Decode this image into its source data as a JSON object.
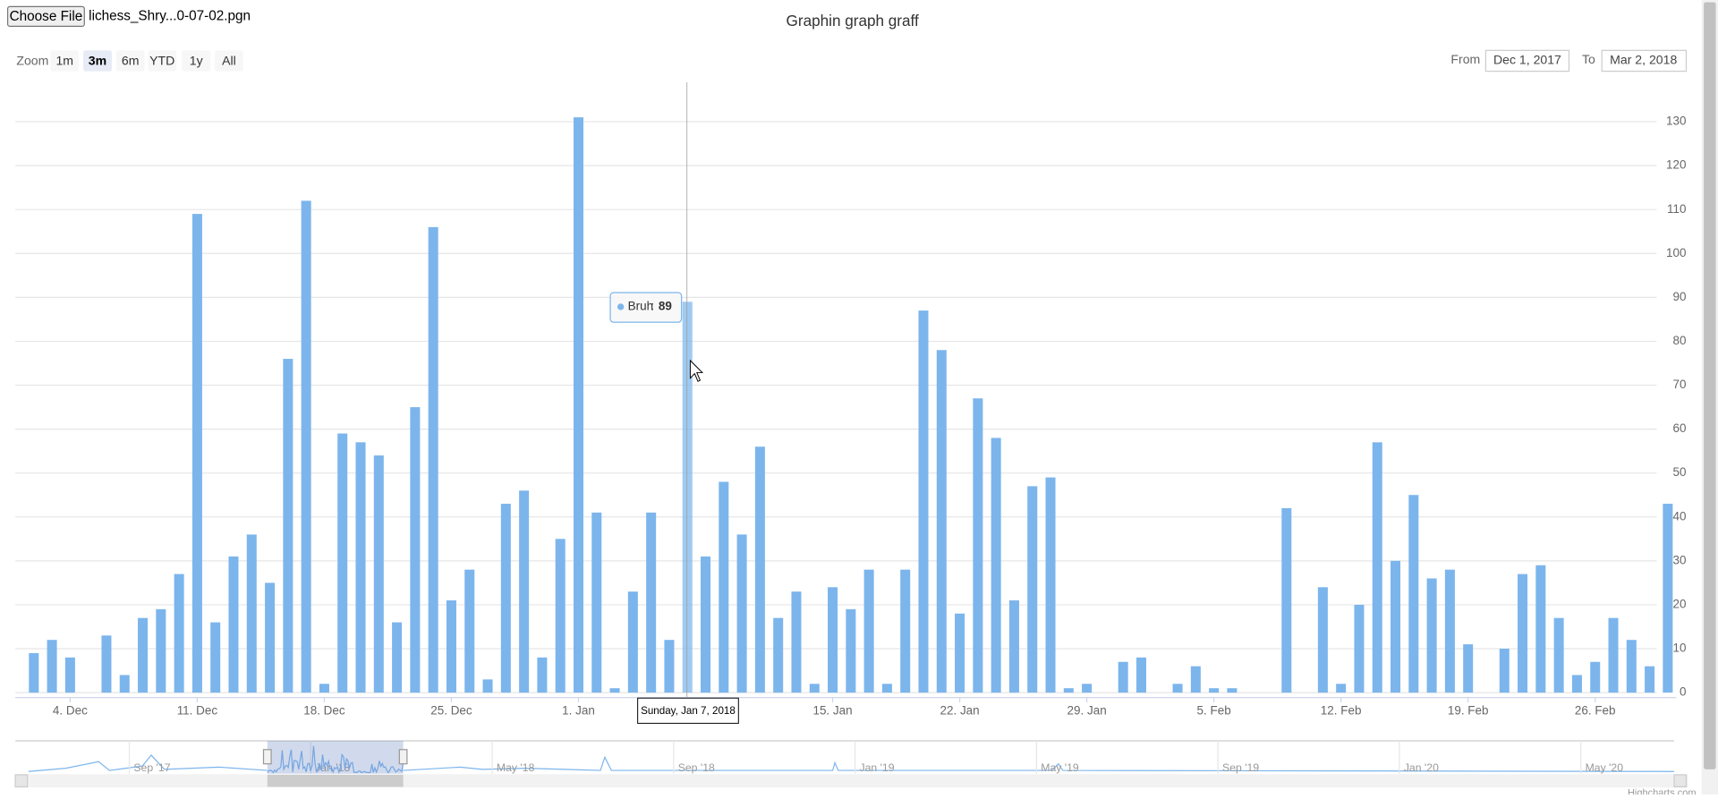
{
  "file_input": {
    "button": "Choose File",
    "file_name": "lichess_Shry...0-07-02.pgn"
  },
  "range_selector": {
    "zoom_label": "Zoom",
    "buttons": [
      "1m",
      "3m",
      "6m",
      "YTD",
      "1y",
      "All"
    ],
    "selected": "3m",
    "from_label": "From",
    "from": "Dec 1, 2017",
    "to_label": "To",
    "to": "Mar 2, 2018"
  },
  "chart_data": {
    "type": "bar",
    "title": "Graphin graph graff",
    "categories": [
      null,
      null,
      null,
      "4. Dec",
      null,
      null,
      null,
      null,
      null,
      null,
      "11. Dec",
      null,
      null,
      null,
      null,
      null,
      null,
      "18. Dec",
      null,
      null,
      null,
      null,
      null,
      null,
      "25. Dec",
      null,
      null,
      null,
      null,
      null,
      null,
      "1. Jan",
      null,
      null,
      null,
      null,
      null,
      null,
      null,
      null,
      null,
      null,
      null,
      null,
      null,
      "15. Jan",
      null,
      null,
      null,
      null,
      null,
      null,
      "22. Jan",
      null,
      null,
      null,
      null,
      null,
      null,
      "29. Jan",
      null,
      null,
      null,
      null,
      null,
      null,
      "5. Feb",
      null,
      null,
      null,
      null,
      null,
      null,
      "12. Feb",
      null,
      null,
      null,
      null,
      null,
      null,
      "19. Feb",
      null,
      null,
      null,
      null,
      null,
      null,
      "26. Feb",
      null,
      null,
      null,
      null
    ],
    "series": [
      {
        "name": "Bruh",
        "color": "#7cb5ec",
        "values": [
          0,
          9,
          12,
          8,
          0,
          13,
          4,
          17,
          19,
          27,
          109,
          16,
          31,
          36,
          25,
          76,
          112,
          2,
          59,
          57,
          54,
          16,
          65,
          106,
          21,
          28,
          3,
          43,
          46,
          8,
          35,
          131,
          41,
          1,
          23,
          41,
          12,
          89,
          31,
          48,
          36,
          56,
          17,
          23,
          2,
          24,
          19,
          28,
          2,
          28,
          87,
          78,
          18,
          67,
          58,
          21,
          47,
          49,
          1,
          2,
          0,
          7,
          8,
          0,
          2,
          6,
          1,
          1,
          0,
          0,
          42,
          0,
          24,
          2,
          20,
          57,
          30,
          45,
          26,
          28,
          11,
          0,
          10,
          27,
          29,
          17,
          4,
          7,
          17,
          12,
          6,
          43
        ]
      }
    ],
    "ylim": [
      0,
      139
    ],
    "yticks": [
      0,
      10,
      20,
      30,
      40,
      50,
      60,
      70,
      80,
      90,
      100,
      110,
      120,
      130
    ],
    "grid": true,
    "tooltip": {
      "header": "Sunday, Jan 7, 2018",
      "separator": ":"
    },
    "navigator_labels": [
      "Sep '17",
      "Jan '18",
      "May '18",
      "Sep '18",
      "Jan '19",
      "May '19",
      "Sep '19",
      "Jan '20",
      "May '20"
    ],
    "credits": "Highcharts.com"
  }
}
